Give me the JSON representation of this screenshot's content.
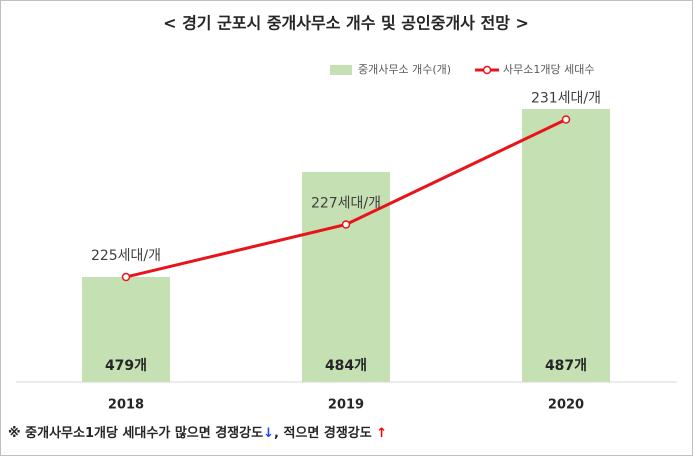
{
  "chart_data": {
    "type": "bar_line",
    "title": "< 경기 군포시 중개사무소 개수 및 공인중개사 전망 >",
    "categories": [
      "2018",
      "2019",
      "2020"
    ],
    "series": [
      {
        "name": "중개사무소 개수(개)",
        "color": "#c5e0b3",
        "type": "bar",
        "values": [
          479,
          484,
          487
        ],
        "value_labels": [
          "479개",
          "484개",
          "487개"
        ]
      },
      {
        "name": "사무소1개당 세대수",
        "color": "#e8141a",
        "type": "line",
        "axis": "y2",
        "values": [
          225,
          227,
          231
        ],
        "value_labels": [
          "225세대/개",
          "227세대/개",
          "231세대/개"
        ]
      }
    ],
    "ylim": [
      474,
      489
    ],
    "y2lim": [
      221,
      233
    ],
    "legend": "top-right"
  },
  "footnote": {
    "text1": "※ 중개사무소1개당 세대수가 많으면 경쟁강도",
    "arrow_down": "↓",
    "text2": ", 적으면 경쟁강도 ",
    "arrow_up": "↑"
  }
}
